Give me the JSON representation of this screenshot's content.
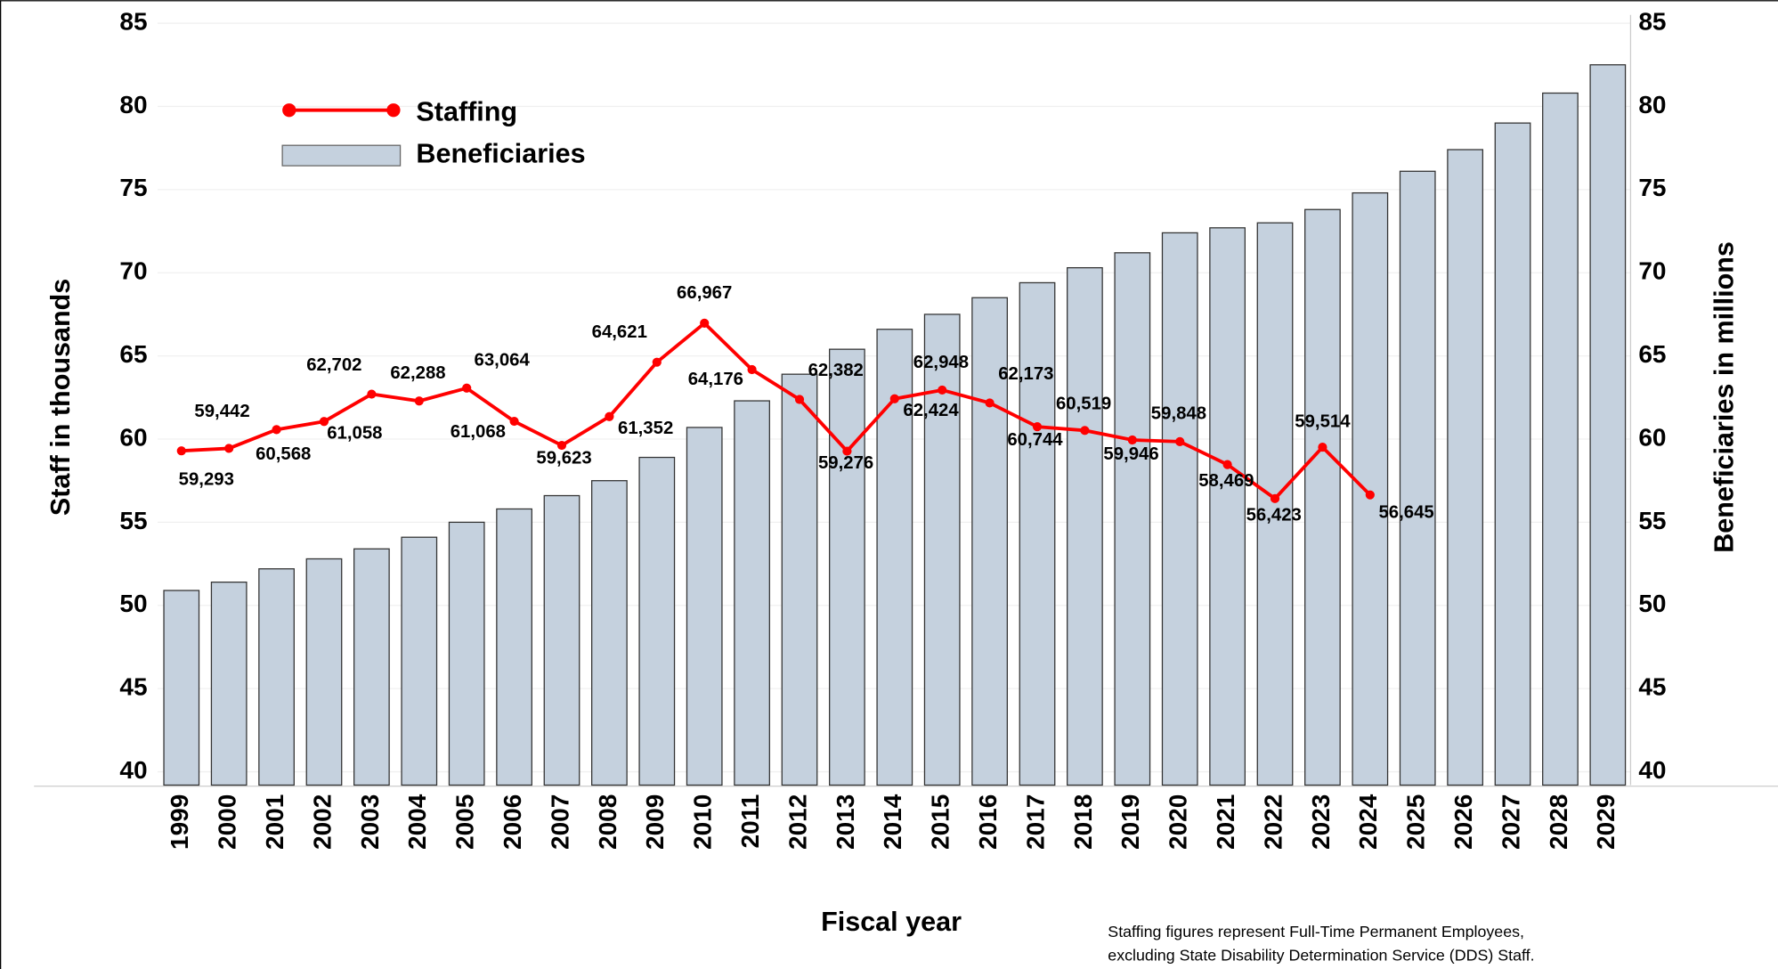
{
  "chart_data": {
    "type": "bar-line",
    "x_label": "Fiscal year",
    "y_label": "Staff in thousands",
    "y2_label": "Beneficiaries in millions",
    "note": [
      "Staffing figures represent Full-Time Permanent Employees,",
      "excluding State Disability Determination Service (DDS) Staff."
    ],
    "categories": [
      "1999",
      "2000",
      "2001",
      "2002",
      "2003",
      "2004",
      "2005",
      "2006",
      "2007",
      "2008",
      "2009",
      "2010",
      "2011",
      "2012",
      "2013",
      "2014",
      "2015",
      "2016",
      "2017",
      "2018",
      "2019",
      "2020",
      "2021",
      "2022",
      "2023",
      "2024",
      "2025",
      "2026",
      "2027",
      "2028",
      "2029"
    ],
    "series": [
      {
        "name": "Staffing",
        "type": "line",
        "color": "#ff0000",
        "axis": "y",
        "values": [
          59.293,
          59.442,
          60.568,
          61.058,
          62.702,
          62.288,
          63.064,
          61.068,
          59.623,
          61.352,
          64.621,
          66.967,
          64.176,
          62.382,
          59.276,
          62.424,
          62.948,
          62.173,
          60.744,
          60.519,
          59.946,
          59.848,
          58.469,
          56.423,
          59.514,
          56.645,
          null,
          null,
          null,
          null,
          null
        ],
        "value_labels": [
          "59,293",
          "59,442",
          "60,568",
          "61,058",
          "62,702",
          "62,288",
          "63,064",
          "61,068",
          "59,623",
          "61,352",
          "64,621",
          "66,967",
          "64,176",
          "62,382",
          "59,276",
          "62,424",
          "62,948",
          "62,173",
          "60,744",
          "60,519",
          "59,946",
          "59,848",
          "58,469",
          "56,423",
          "59,514",
          "56,645",
          null,
          null,
          null,
          null,
          null
        ]
      },
      {
        "name": "Beneficiaries",
        "type": "bar",
        "color": "#c5d1de",
        "axis": "y2",
        "values": [
          50.9,
          51.4,
          52.2,
          52.8,
          53.4,
          54.1,
          55.0,
          55.8,
          56.6,
          57.5,
          58.9,
          60.7,
          62.3,
          63.9,
          65.4,
          66.6,
          67.5,
          68.5,
          69.4,
          70.3,
          71.2,
          72.4,
          72.7,
          73.0,
          73.8,
          74.8,
          76.1,
          77.4,
          79.0,
          80.8,
          82.5
        ]
      }
    ],
    "ylim": [
      39.2,
      85.5
    ],
    "yticks": [
      40,
      45,
      50,
      55,
      60,
      65,
      70,
      75,
      80,
      85
    ],
    "y2lim": [
      39.2,
      85.5
    ],
    "y2ticks": [
      40,
      45,
      50,
      55,
      60,
      65,
      70,
      75,
      80,
      85
    ],
    "grid": true,
    "legend": "upper left"
  }
}
